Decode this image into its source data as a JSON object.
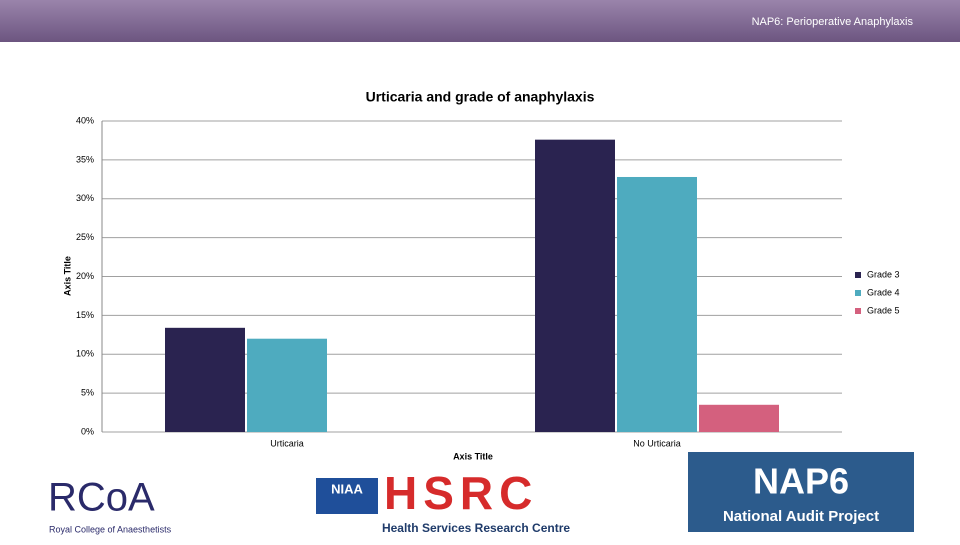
{
  "header": {
    "title": "NAP6: Perioperative Anaphylaxis"
  },
  "chart_data": {
    "type": "bar",
    "title": "Urticaria and grade of anaphylaxis",
    "x_label": "Axis Title",
    "y_label": "Axis Title",
    "categories": [
      "Urticaria",
      "No Urticaria"
    ],
    "series": [
      {
        "name": "Grade 3",
        "color": "#2a2350",
        "values": [
          13.4,
          37.6
        ]
      },
      {
        "name": "Grade 4",
        "color": "#4eabbf",
        "values": [
          12.0,
          32.8
        ]
      },
      {
        "name": "Grade 5",
        "color": "#d4607e",
        "values": [
          0,
          3.5
        ]
      }
    ],
    "ylim": [
      0,
      40
    ],
    "yticks": [
      {
        "value": 0,
        "label": "0%"
      },
      {
        "value": 5,
        "label": "5%"
      },
      {
        "value": 10,
        "label": "10%"
      },
      {
        "value": 15,
        "label": "15%"
      },
      {
        "value": 20,
        "label": "20%"
      },
      {
        "value": 25,
        "label": "25%"
      },
      {
        "value": 30,
        "label": "30%"
      },
      {
        "value": 35,
        "label": "35%"
      },
      {
        "value": 40,
        "label": "40%"
      }
    ],
    "grid": true,
    "legend": "right"
  },
  "logos": {
    "rcoa": "RCoA",
    "rcoa_name": "Royal College of Anaesthetists",
    "niaa": "NIAA",
    "hsrc": "HSRC",
    "hsrc_name": "Health Services Research Centre",
    "nap6": "NAP6",
    "nap6_name": "National Audit Project"
  }
}
